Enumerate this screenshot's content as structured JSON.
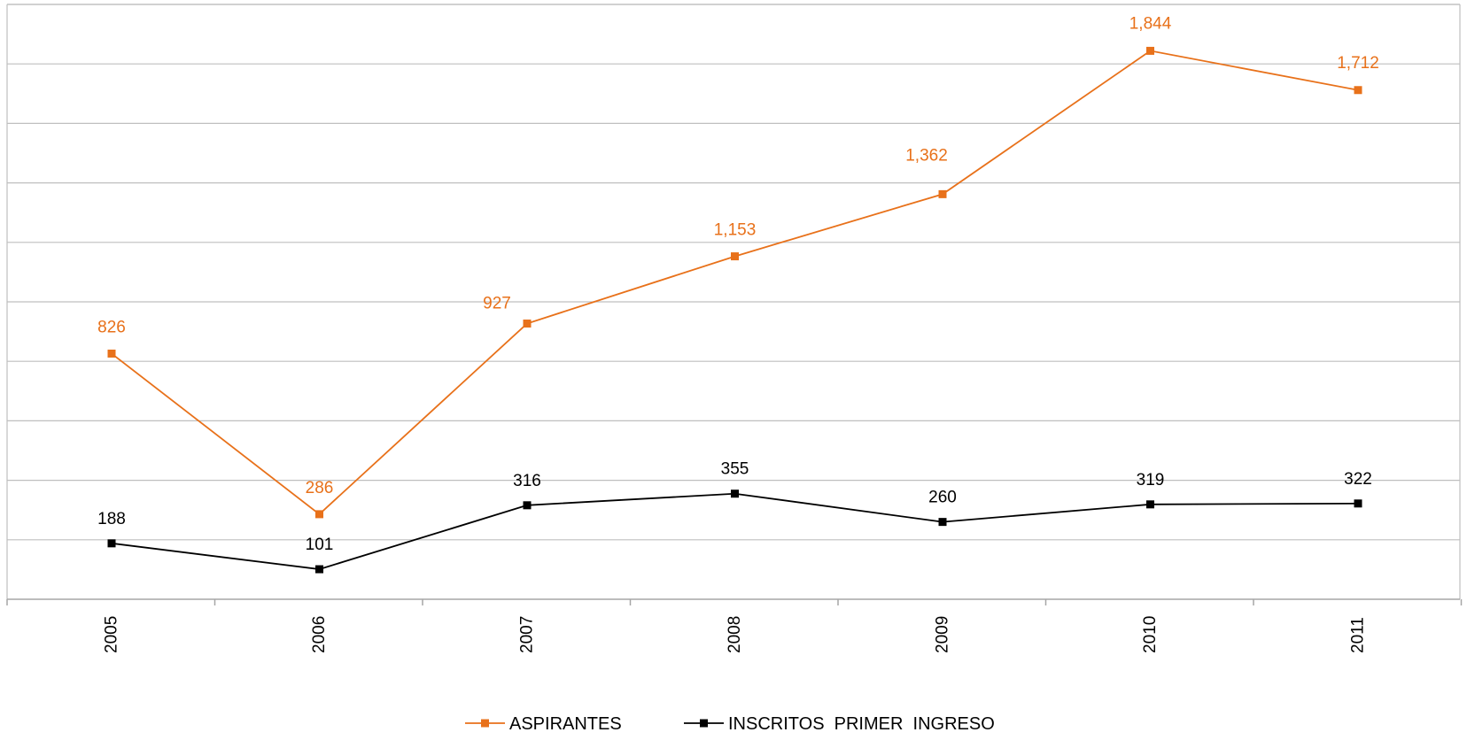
{
  "chart_data": {
    "type": "line",
    "title": "",
    "xlabel": "",
    "ylabel": "",
    "categories": [
      "2005",
      "2006",
      "2007",
      "2008",
      "2009",
      "2010",
      "2011"
    ],
    "ylim": [
      0,
      2000
    ],
    "y_grid_step": 200,
    "grid": true,
    "y_tick_labels_shown": false,
    "x_tick_label_orientation": "vertical",
    "data_labels_shown": true,
    "legend_position": "bottom",
    "series": [
      {
        "name": "ASPIRANTES",
        "values": [
          826,
          286,
          927,
          1153,
          1362,
          1844,
          1712
        ],
        "labels": [
          "826",
          "286",
          "927",
          "1,153",
          "1,362",
          "1,844",
          "1,712"
        ],
        "color": "#E8711A",
        "marker": "square"
      },
      {
        "name": "INSCRITOS  PRIMER  INGRESO",
        "values": [
          188,
          101,
          316,
          355,
          260,
          319,
          322
        ],
        "labels": [
          "188",
          "101",
          "316",
          "355",
          "260",
          "319",
          "322"
        ],
        "color": "#000000",
        "marker": "square"
      }
    ]
  }
}
